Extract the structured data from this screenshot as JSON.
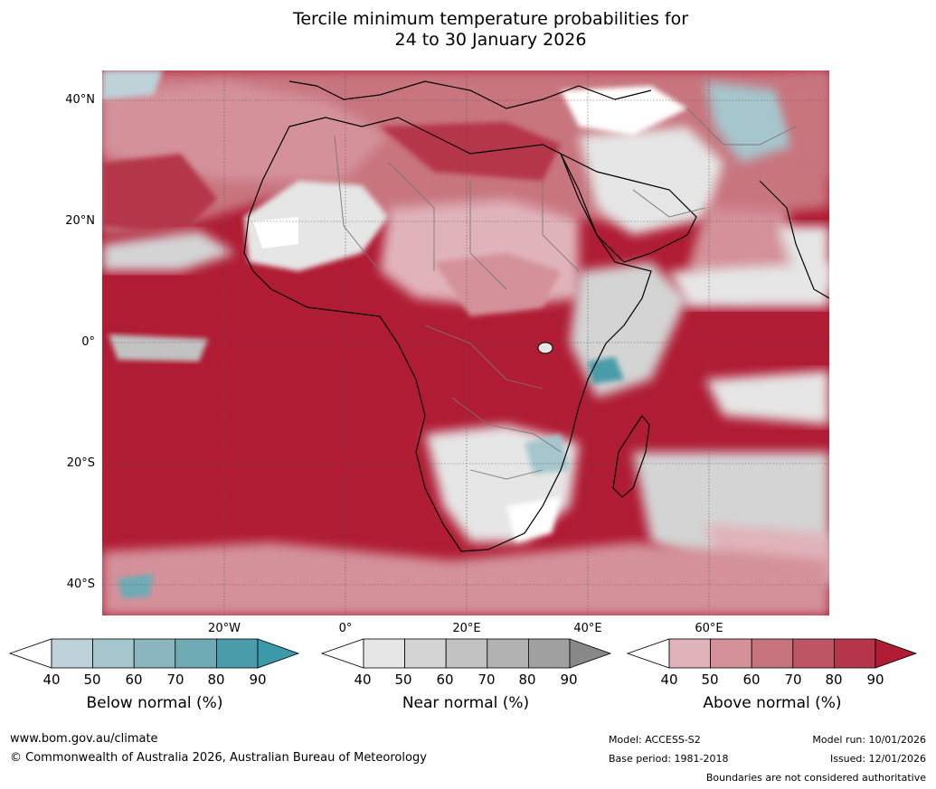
{
  "title": {
    "line1": "Tercile minimum temperature probabilities for",
    "line2": "24 to 30 January 2026"
  },
  "map": {
    "lat_labels": [
      "40°N",
      "20°N",
      "0°",
      "20°S",
      "40°S"
    ],
    "lon_labels": [
      "20°W",
      "0°",
      "20°E",
      "40°E",
      "60°E"
    ],
    "extent": {
      "lon_min": -40,
      "lon_max": 80,
      "lat_min": -45,
      "lat_max": 45
    },
    "colors": {
      "above": [
        "#e0b3ba",
        "#d4919a",
        "#c8747e",
        "#bd5565",
        "#b5354a",
        "#b01c34"
      ],
      "near": [
        "#e6e6e6",
        "#d4d4d4",
        "#c2c2c2",
        "#b2b2b2",
        "#a0a0a0",
        "#888888"
      ],
      "below": [
        "#bdd2d9",
        "#a6c6cd",
        "#8bb6bf",
        "#6eabb5",
        "#4a9caa",
        "#3a9aaa"
      ],
      "ocean_dominant": "#b01c34",
      "land_white": "#ffffff"
    }
  },
  "legends": [
    {
      "name": "below",
      "title": "Below normal (%)",
      "ticks": [
        "40",
        "50",
        "60",
        "70",
        "80",
        "90"
      ],
      "colors": [
        "#ffffff",
        "#bdd2d9",
        "#a6c6cd",
        "#8bb6bf",
        "#6eabb5",
        "#4a9caa",
        "#3a9aaa"
      ]
    },
    {
      "name": "near",
      "title": "Near normal (%)",
      "ticks": [
        "40",
        "50",
        "60",
        "70",
        "80",
        "90"
      ],
      "colors": [
        "#ffffff",
        "#e6e6e6",
        "#d4d4d4",
        "#c2c2c2",
        "#b2b2b2",
        "#a0a0a0",
        "#888888"
      ]
    },
    {
      "name": "above",
      "title": "Above normal (%)",
      "ticks": [
        "40",
        "50",
        "60",
        "70",
        "80",
        "90"
      ],
      "colors": [
        "#ffffff",
        "#e0b3ba",
        "#d4919a",
        "#c8747e",
        "#bd5565",
        "#b5354a",
        "#b01c34"
      ]
    }
  ],
  "footer": {
    "website": "www.bom.gov.au/climate",
    "copyright": "© Commonwealth of Australia 2026, Australian Bureau of Meteorology",
    "model": "Model: ACCESS-S2",
    "base_period": "Base period: 1981-2018",
    "model_run": "Model run: 10/01/2026",
    "issued": "Issued: 12/01/2026",
    "disclaimer": "Boundaries are not considered authoritative"
  }
}
